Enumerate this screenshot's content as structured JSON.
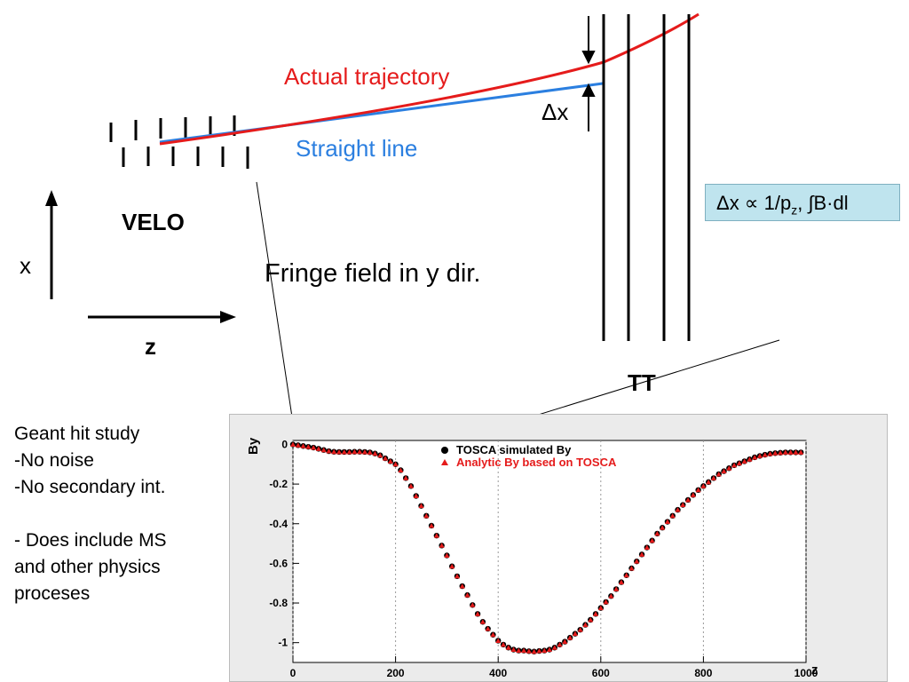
{
  "diagram": {
    "actual_trajectory_label": "Actual trajectory",
    "straight_line_label": "Straight line",
    "delta_x_label": "Δx",
    "velo_label": "VELO",
    "x_axis_label": "x",
    "z_axis_label": "z",
    "fringe_label": "Fringe field in y dir.",
    "tt_label": "TT",
    "colors": {
      "trajectory": "#e51b1b",
      "straight_line": "#2b7fe0",
      "box": "#bfe4ee"
    }
  },
  "formula": {
    "prefix": "Δx ∝ 1/p",
    "subscript": "z",
    "suffix": ", ∫B·dl"
  },
  "notes": [
    "Geant hit study",
    "-No noise",
    "-No secondary int.",
    "",
    "- Does include MS",
    "and other physics",
    "proceses"
  ],
  "chart_data": {
    "type": "scatter",
    "xlabel": "z",
    "ylabel": "By",
    "xlim": [
      0,
      1000
    ],
    "ylim": [
      -1.1,
      0.02
    ],
    "x_ticks": [
      "0",
      "200",
      "400",
      "600",
      "800",
      "1000"
    ],
    "y_ticks": [
      "0",
      "-0.2",
      "-0.4",
      "-0.6",
      "-0.8",
      "-1"
    ],
    "legend_position": "top-center",
    "series": [
      {
        "name": "TOSCA simulated By",
        "marker": "circle",
        "color": "#000000",
        "x": [
          0,
          10,
          20,
          30,
          40,
          50,
          60,
          70,
          80,
          90,
          100,
          110,
          120,
          130,
          140,
          150,
          160,
          170,
          180,
          190,
          200,
          210,
          220,
          230,
          240,
          250,
          260,
          270,
          280,
          290,
          300,
          310,
          320,
          330,
          340,
          350,
          360,
          370,
          380,
          390,
          400,
          410,
          420,
          430,
          440,
          450,
          460,
          470,
          480,
          490,
          500,
          510,
          520,
          530,
          540,
          550,
          560,
          570,
          580,
          590,
          600,
          610,
          620,
          630,
          640,
          650,
          660,
          670,
          680,
          690,
          700,
          710,
          720,
          730,
          740,
          750,
          760,
          770,
          780,
          790,
          800,
          810,
          820,
          830,
          840,
          850,
          860,
          870,
          880,
          890,
          900,
          910,
          920,
          930,
          940,
          950,
          960,
          970,
          980,
          990
        ],
        "y": [
          0,
          -0.004,
          -0.008,
          -0.012,
          -0.016,
          -0.022,
          -0.028,
          -0.034,
          -0.037,
          -0.038,
          -0.038,
          -0.038,
          -0.037,
          -0.037,
          -0.038,
          -0.04,
          -0.046,
          -0.055,
          -0.07,
          -0.085,
          -0.1,
          -0.13,
          -0.17,
          -0.21,
          -0.26,
          -0.31,
          -0.36,
          -0.41,
          -0.46,
          -0.51,
          -0.56,
          -0.615,
          -0.665,
          -0.715,
          -0.76,
          -0.81,
          -0.855,
          -0.895,
          -0.93,
          -0.96,
          -0.99,
          -1.01,
          -1.025,
          -1.035,
          -1.04,
          -1.04,
          -1.043,
          -1.045,
          -1.042,
          -1.04,
          -1.035,
          -1.025,
          -1.01,
          -0.995,
          -0.975,
          -0.955,
          -0.935,
          -0.91,
          -0.885,
          -0.855,
          -0.825,
          -0.795,
          -0.765,
          -0.73,
          -0.695,
          -0.66,
          -0.625,
          -0.59,
          -0.555,
          -0.52,
          -0.485,
          -0.45,
          -0.42,
          -0.39,
          -0.36,
          -0.33,
          -0.305,
          -0.28,
          -0.255,
          -0.23,
          -0.21,
          -0.19,
          -0.17,
          -0.15,
          -0.135,
          -0.12,
          -0.105,
          -0.095,
          -0.085,
          -0.075,
          -0.065,
          -0.058,
          -0.052,
          -0.047,
          -0.044,
          -0.042,
          -0.04,
          -0.04,
          -0.04,
          -0.04
        ]
      },
      {
        "name": "Analytic By based on TOSCA",
        "marker": "triangle",
        "color": "#e51b1b",
        "x": [
          0,
          10,
          20,
          30,
          40,
          50,
          60,
          70,
          80,
          90,
          100,
          110,
          120,
          130,
          140,
          150,
          160,
          170,
          180,
          190,
          200,
          210,
          220,
          230,
          240,
          250,
          260,
          270,
          280,
          290,
          300,
          310,
          320,
          330,
          340,
          350,
          360,
          370,
          380,
          390,
          400,
          410,
          420,
          430,
          440,
          450,
          460,
          470,
          480,
          490,
          500,
          510,
          520,
          530,
          540,
          550,
          560,
          570,
          580,
          590,
          600,
          610,
          620,
          630,
          640,
          650,
          660,
          670,
          680,
          690,
          700,
          710,
          720,
          730,
          740,
          750,
          760,
          770,
          780,
          790,
          800,
          810,
          820,
          830,
          840,
          850,
          860,
          870,
          880,
          890,
          900,
          910,
          920,
          930,
          940,
          950,
          960,
          970,
          980,
          990
        ],
        "y": [
          0,
          -0.004,
          -0.008,
          -0.012,
          -0.016,
          -0.022,
          -0.028,
          -0.034,
          -0.037,
          -0.038,
          -0.038,
          -0.038,
          -0.037,
          -0.037,
          -0.038,
          -0.04,
          -0.046,
          -0.055,
          -0.07,
          -0.085,
          -0.1,
          -0.13,
          -0.17,
          -0.21,
          -0.26,
          -0.31,
          -0.36,
          -0.41,
          -0.46,
          -0.51,
          -0.56,
          -0.615,
          -0.665,
          -0.715,
          -0.76,
          -0.81,
          -0.855,
          -0.895,
          -0.93,
          -0.96,
          -0.99,
          -1.01,
          -1.025,
          -1.035,
          -1.04,
          -1.04,
          -1.043,
          -1.045,
          -1.042,
          -1.04,
          -1.035,
          -1.025,
          -1.01,
          -0.995,
          -0.975,
          -0.955,
          -0.935,
          -0.91,
          -0.885,
          -0.855,
          -0.825,
          -0.795,
          -0.765,
          -0.73,
          -0.695,
          -0.66,
          -0.625,
          -0.59,
          -0.555,
          -0.52,
          -0.485,
          -0.45,
          -0.42,
          -0.39,
          -0.36,
          -0.33,
          -0.305,
          -0.28,
          -0.255,
          -0.23,
          -0.21,
          -0.19,
          -0.17,
          -0.15,
          -0.135,
          -0.12,
          -0.105,
          -0.095,
          -0.085,
          -0.075,
          -0.065,
          -0.058,
          -0.052,
          -0.047,
          -0.044,
          -0.042,
          -0.04,
          -0.04,
          -0.04,
          -0.04
        ]
      }
    ]
  }
}
